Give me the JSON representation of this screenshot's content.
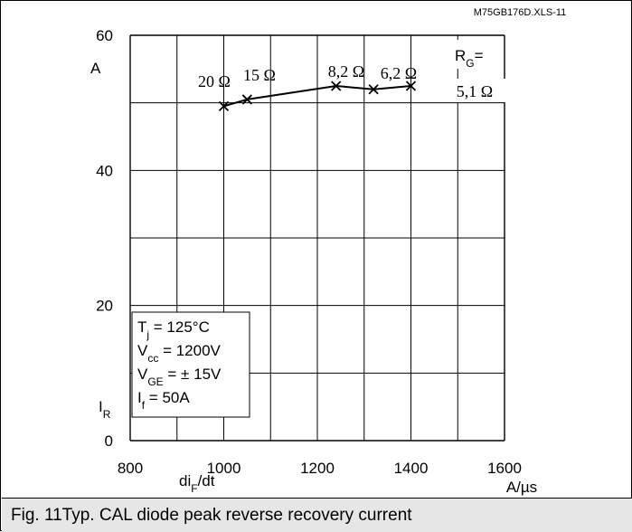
{
  "doc_id": "M75GB176D.XLS-11",
  "caption": "Fig. 11Typ. CAL diode peak reverse recovery current",
  "chart_data": {
    "type": "line",
    "title": "",
    "x_axis": {
      "tick_labels": [
        "800",
        "1000",
        "1200",
        "1400",
        "1600"
      ],
      "label_main": "di",
      "label_sub": "F",
      "label_tail": "/dt",
      "unit": "A/µs",
      "range": [
        800,
        1600
      ]
    },
    "y_axis": {
      "tick_labels": [
        "0",
        "20",
        "40",
        "60"
      ],
      "label_main": "I",
      "label_sub": "R",
      "unit": "A",
      "range": [
        0,
        60
      ]
    },
    "grid": true,
    "series": [
      {
        "x": [
          1000,
          1050,
          1240,
          1320,
          1400
        ],
        "y": [
          49.5,
          50.5,
          52.5,
          52.0,
          52.5
        ],
        "point_labels": [
          "20 Ω",
          "15 Ω",
          "8,2 Ω",
          "6,2 Ω",
          "5,1 Ω"
        ]
      }
    ],
    "rg_label_main": "R",
    "rg_label_sub": "G",
    "rg_label_tail": "=",
    "conditions": [
      {
        "main": "T",
        "sub": "j",
        "tail": " = 125°C"
      },
      {
        "main": "V",
        "sub": "cc",
        "tail": " = 1200V"
      },
      {
        "main": "V",
        "sub": "GE",
        "tail": " = ± 15V"
      },
      {
        "main": "I",
        "sub": "f",
        "tail": " = 50A"
      }
    ]
  }
}
